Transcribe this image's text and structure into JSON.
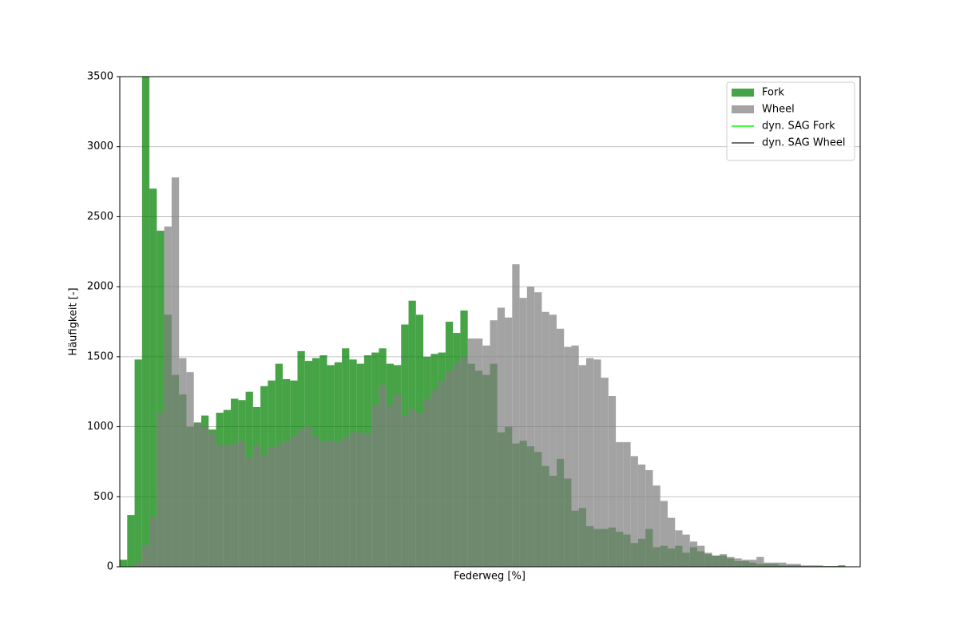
{
  "chart_data": {
    "type": "histogram",
    "xlabel": "Federweg [%]",
    "ylabel": "Häufigkeit [-]",
    "bins": [
      0,
      1,
      2,
      3,
      4,
      5,
      6,
      7,
      8,
      9,
      10,
      11,
      12,
      13,
      14,
      15,
      16,
      17,
      18,
      19,
      20,
      21,
      22,
      23,
      24,
      25,
      26,
      27,
      28,
      29,
      30,
      31,
      32,
      33,
      34,
      35,
      36,
      37,
      38,
      39,
      40,
      41,
      42,
      43,
      44,
      45,
      46,
      47,
      48,
      49,
      50,
      51,
      52,
      53,
      54,
      55,
      56,
      57,
      58,
      59,
      60,
      61,
      62,
      63,
      64,
      65,
      66,
      67,
      68,
      69,
      70,
      71,
      72,
      73,
      74,
      75,
      76,
      77,
      78,
      79,
      80,
      81,
      82,
      83,
      84,
      85,
      86,
      87,
      88,
      89,
      90,
      91,
      92,
      93,
      94,
      95,
      96,
      97,
      98,
      99,
      100
    ],
    "series": [
      {
        "name": "Fork",
        "color": "#008000",
        "alpha": 0.72,
        "values": [
          50,
          370,
          1480,
          3500,
          2700,
          2400,
          1800,
          1370,
          1230,
          1000,
          1030,
          1080,
          980,
          1100,
          1120,
          1200,
          1190,
          1250,
          1140,
          1290,
          1330,
          1450,
          1340,
          1330,
          1540,
          1470,
          1490,
          1510,
          1440,
          1460,
          1560,
          1480,
          1450,
          1510,
          1530,
          1560,
          1450,
          1440,
          1730,
          1900,
          1800,
          1500,
          1520,
          1530,
          1750,
          1670,
          1830,
          1450,
          1400,
          1370,
          1450,
          960,
          1000,
          880,
          900,
          860,
          820,
          720,
          650,
          770,
          630,
          400,
          420,
          290,
          270,
          270,
          280,
          250,
          230,
          170,
          200,
          270,
          140,
          150,
          130,
          150,
          100,
          140,
          110,
          90,
          80,
          80,
          60,
          40,
          40,
          30,
          20,
          20,
          20,
          10,
          10,
          10,
          5,
          5,
          5,
          5,
          5,
          10,
          0,
          0
        ]
      },
      {
        "name": "Wheel",
        "color": "#808080",
        "alpha": 0.72,
        "values": [
          0,
          0,
          30,
          150,
          350,
          1100,
          2430,
          2780,
          1490,
          1390,
          1020,
          1000,
          950,
          870,
          870,
          880,
          900,
          780,
          870,
          800,
          850,
          870,
          900,
          930,
          980,
          1000,
          930,
          890,
          900,
          890,
          920,
          960,
          960,
          950,
          1150,
          1300,
          1150,
          1230,
          1080,
          1130,
          1100,
          1200,
          1260,
          1330,
          1400,
          1450,
          1500,
          1630,
          1630,
          1580,
          1760,
          1850,
          1780,
          2160,
          1920,
          2000,
          1960,
          1820,
          1800,
          1700,
          1570,
          1580,
          1440,
          1490,
          1480,
          1350,
          1220,
          890,
          890,
          790,
          730,
          690,
          580,
          470,
          350,
          260,
          230,
          180,
          150,
          100,
          80,
          90,
          70,
          60,
          50,
          50,
          70,
          30,
          30,
          30,
          20,
          20,
          10,
          10,
          10,
          5,
          5,
          5,
          0,
          0
        ]
      }
    ],
    "legend_lines": [
      {
        "name": "dyn. SAG Fork",
        "color": "#00ff00"
      },
      {
        "name": "dyn. SAG Wheel",
        "color": "#404040"
      }
    ],
    "xlim": [
      0,
      100
    ],
    "ylim": [
      0,
      3500
    ],
    "yticks": [
      0,
      500,
      1000,
      1500,
      2000,
      2500,
      3000,
      3500
    ],
    "grid": "y",
    "legend": "upper right"
  }
}
